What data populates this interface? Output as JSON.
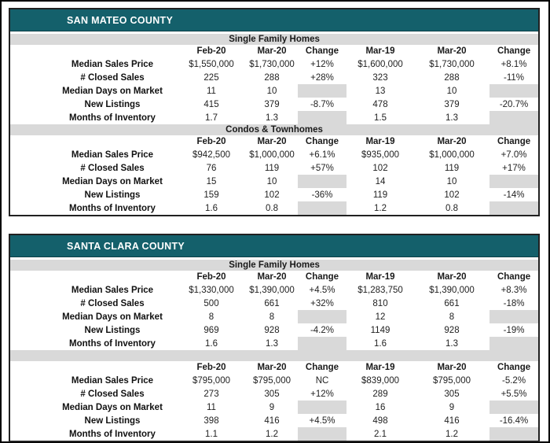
{
  "colors": {
    "header_teal": "#14606b",
    "band_gray": "#d9d9d9",
    "positive_green": "#58a058",
    "negative_red": "#e03535"
  },
  "tables": [
    {
      "title": "SAN MATEO COUNTY",
      "sections": [
        {
          "band": "Single Family Homes",
          "columns": [
            "Feb-20",
            "Mar-20",
            "Change",
            "Mar-19",
            "Mar-20",
            "Change"
          ],
          "rows": [
            {
              "label": "Median Sales Price",
              "cells": [
                {
                  "v": "$1,550,000"
                },
                {
                  "v": "$1,730,000"
                },
                {
                  "v": "+12%",
                  "t": "pos"
                },
                {
                  "v": "$1,600,000"
                },
                {
                  "v": "$1,730,000"
                },
                {
                  "v": "+8.1%",
                  "t": "pos"
                }
              ]
            },
            {
              "label": "# Closed Sales",
              "cells": [
                {
                  "v": "225"
                },
                {
                  "v": "288"
                },
                {
                  "v": "+28%",
                  "t": "pos"
                },
                {
                  "v": "323"
                },
                {
                  "v": "288"
                },
                {
                  "v": "-11%",
                  "t": "neg"
                }
              ]
            },
            {
              "label": "Median Days on Market",
              "cells": [
                {
                  "v": "11"
                },
                {
                  "v": "10"
                },
                {
                  "v": "",
                  "t": "blank"
                },
                {
                  "v": "13"
                },
                {
                  "v": "10"
                },
                {
                  "v": "",
                  "t": "blank"
                }
              ]
            },
            {
              "label": "New Listings",
              "cells": [
                {
                  "v": "415"
                },
                {
                  "v": "379"
                },
                {
                  "v": "-8.7%",
                  "t": "neg"
                },
                {
                  "v": "478"
                },
                {
                  "v": "379"
                },
                {
                  "v": "-20.7%",
                  "t": "neg"
                }
              ]
            },
            {
              "label": "Months of Inventory",
              "cells": [
                {
                  "v": "1.7"
                },
                {
                  "v": "1.3"
                },
                {
                  "v": "",
                  "t": "blank"
                },
                {
                  "v": "1.5"
                },
                {
                  "v": "1.3"
                },
                {
                  "v": "",
                  "t": "blank"
                }
              ]
            }
          ]
        },
        {
          "band": "Condos & Townhomes",
          "columns": [
            "Feb-20",
            "Mar-20",
            "Change",
            "Mar-19",
            "Mar-20",
            "Change"
          ],
          "rows": [
            {
              "label": "Median Sales Price",
              "cells": [
                {
                  "v": "$942,500"
                },
                {
                  "v": "$1,000,000"
                },
                {
                  "v": "+6.1%",
                  "t": "pos"
                },
                {
                  "v": "$935,000"
                },
                {
                  "v": "$1,000,000"
                },
                {
                  "v": "+7.0%",
                  "t": "pos"
                }
              ]
            },
            {
              "label": "# Closed Sales",
              "cells": [
                {
                  "v": "76"
                },
                {
                  "v": "119"
                },
                {
                  "v": "+57%",
                  "t": "pos"
                },
                {
                  "v": "102"
                },
                {
                  "v": "119"
                },
                {
                  "v": "+17%",
                  "t": "pos"
                }
              ]
            },
            {
              "label": "Median Days on Market",
              "cells": [
                {
                  "v": "15"
                },
                {
                  "v": "10"
                },
                {
                  "v": "",
                  "t": "blank"
                },
                {
                  "v": "14"
                },
                {
                  "v": "10"
                },
                {
                  "v": "",
                  "t": "blank"
                }
              ]
            },
            {
              "label": "New Listings",
              "cells": [
                {
                  "v": "159"
                },
                {
                  "v": "102"
                },
                {
                  "v": "-36%",
                  "t": "neg"
                },
                {
                  "v": "119"
                },
                {
                  "v": "102"
                },
                {
                  "v": "-14%",
                  "t": "neg"
                }
              ]
            },
            {
              "label": "Months of Inventory",
              "cells": [
                {
                  "v": "1.6"
                },
                {
                  "v": "0.8"
                },
                {
                  "v": "",
                  "t": "blank"
                },
                {
                  "v": "1.2"
                },
                {
                  "v": "0.8"
                },
                {
                  "v": "",
                  "t": "blank"
                }
              ]
            }
          ]
        }
      ]
    },
    {
      "title": "SANTA CLARA COUNTY",
      "sections": [
        {
          "band": "Single Family Homes",
          "columns": [
            "Feb-20",
            "Mar-20",
            "Change",
            "Mar-19",
            "Mar-20",
            "Change"
          ],
          "rows": [
            {
              "label": "Median Sales Price",
              "cells": [
                {
                  "v": "$1,330,000"
                },
                {
                  "v": "$1,390,000"
                },
                {
                  "v": "+4.5%",
                  "t": "pos"
                },
                {
                  "v": "$1,283,750"
                },
                {
                  "v": "$1,390,000"
                },
                {
                  "v": "+8.3%",
                  "t": "pos"
                }
              ]
            },
            {
              "label": "# Closed Sales",
              "cells": [
                {
                  "v": "500"
                },
                {
                  "v": "661"
                },
                {
                  "v": "+32%",
                  "t": "pos"
                },
                {
                  "v": "810"
                },
                {
                  "v": "661"
                },
                {
                  "v": "-18%",
                  "t": "neg"
                }
              ]
            },
            {
              "label": "Median Days on Market",
              "cells": [
                {
                  "v": "8"
                },
                {
                  "v": "8"
                },
                {
                  "v": "",
                  "t": "blank"
                },
                {
                  "v": "12"
                },
                {
                  "v": "8"
                },
                {
                  "v": "",
                  "t": "blank"
                }
              ]
            },
            {
              "label": "New Listings",
              "cells": [
                {
                  "v": "969"
                },
                {
                  "v": "928"
                },
                {
                  "v": "-4.2%",
                  "t": "neg"
                },
                {
                  "v": "1149"
                },
                {
                  "v": "928"
                },
                {
                  "v": "-19%",
                  "t": "neg"
                }
              ]
            },
            {
              "label": "Months of Inventory",
              "cells": [
                {
                  "v": "1.6"
                },
                {
                  "v": "1.3"
                },
                {
                  "v": "",
                  "t": "blank"
                },
                {
                  "v": "1.6"
                },
                {
                  "v": "1.3"
                },
                {
                  "v": "",
                  "t": "blank"
                }
              ]
            }
          ]
        },
        {
          "band": "",
          "columns": [
            "Feb-20",
            "Mar-20",
            "Change",
            "Mar-19",
            "Mar-20",
            "Change"
          ],
          "rows": [
            {
              "label": "Median Sales Price",
              "cells": [
                {
                  "v": "$795,000"
                },
                {
                  "v": "$795,000"
                },
                {
                  "v": "NC",
                  "t": "neg"
                },
                {
                  "v": "$839,000"
                },
                {
                  "v": "$795,000"
                },
                {
                  "v": "-5.2%",
                  "t": "neg"
                }
              ]
            },
            {
              "label": "# Closed Sales",
              "cells": [
                {
                  "v": "273"
                },
                {
                  "v": "305"
                },
                {
                  "v": "+12%",
                  "t": "pos"
                },
                {
                  "v": "289"
                },
                {
                  "v": "305"
                },
                {
                  "v": "+5.5%",
                  "t": "pos"
                }
              ]
            },
            {
              "label": "Median Days on Market",
              "cells": [
                {
                  "v": "11"
                },
                {
                  "v": "9"
                },
                {
                  "v": "",
                  "t": "blank"
                },
                {
                  "v": "16"
                },
                {
                  "v": "9"
                },
                {
                  "v": "",
                  "t": "blank"
                }
              ]
            },
            {
              "label": "New Listings",
              "cells": [
                {
                  "v": "398"
                },
                {
                  "v": "416"
                },
                {
                  "v": "+4.5%",
                  "t": "pos"
                },
                {
                  "v": "498"
                },
                {
                  "v": "416"
                },
                {
                  "v": "-16.4%",
                  "t": "neg"
                }
              ]
            },
            {
              "label": "Months of Inventory",
              "cells": [
                {
                  "v": "1.1"
                },
                {
                  "v": "1.2"
                },
                {
                  "v": "",
                  "t": "blank"
                },
                {
                  "v": "2.1"
                },
                {
                  "v": "1.2"
                },
                {
                  "v": "",
                  "t": "blank"
                }
              ]
            }
          ]
        }
      ]
    }
  ]
}
